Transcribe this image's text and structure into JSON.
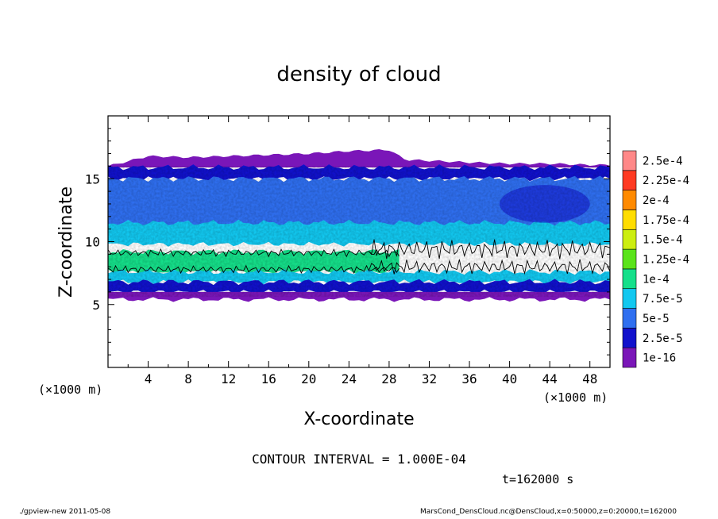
{
  "chart_data": {
    "type": "heatmap",
    "title": "density of cloud",
    "xlabel": "X-coordinate",
    "ylabel": "Z-coordinate",
    "x_unit_left": "(×1000 m)",
    "x_unit_right": "(×1000 m)",
    "xlim": [
      0,
      50
    ],
    "ylim": [
      0,
      20
    ],
    "x_ticks": [
      4,
      8,
      12,
      16,
      20,
      24,
      28,
      32,
      36,
      40,
      44,
      48
    ],
    "y_ticks": [
      5,
      10,
      15
    ],
    "contour_interval_label": "CONTOUR INTERVAL = 1.000E-04",
    "time_label": "t=162000 s",
    "colorbar": {
      "levels": [
        1e-16,
        2.5e-05,
        5e-05,
        7.5e-05,
        0.0001,
        0.000125,
        0.00015,
        0.000175,
        0.0002,
        0.000225,
        0.00025
      ],
      "labels": [
        "1e-16",
        "2.5e-5",
        "5e-5",
        "7.5e-5",
        "1e-4",
        "1.25e-4",
        "1.5e-4",
        "1.75e-4",
        "2e-4",
        "2.25e-4",
        "2.5e-4"
      ],
      "colors": [
        "#7a16b8",
        "#1111cc",
        "#2f6ff0",
        "#12c8f0",
        "#15e08a",
        "#5ae41a",
        "#ccee10",
        "#ffdd00",
        "#ff8a00",
        "#ff3a22",
        "#ff8888"
      ]
    },
    "layers": [
      {
        "name": "cloud-top-fringe",
        "z_bottom": 15.9,
        "z_top_profile_x": [
          0,
          4,
          8,
          16,
          20,
          24,
          28,
          29.4,
          30,
          36,
          40,
          44,
          48,
          50
        ],
        "z_top_profile": [
          16.0,
          16.8,
          16.7,
          16.9,
          17.0,
          17.2,
          17.3,
          16.6,
          16.5,
          16.3,
          16.2,
          16.2,
          16.1,
          16.1
        ],
        "level_index": 0
      },
      {
        "name": "upper-dense-band",
        "z_bottom": 15.0,
        "z_top": 15.9,
        "level_index": 1
      },
      {
        "name": "upper-cloud",
        "z_bottom": 10.5,
        "z_top": 15.0,
        "level_index": 2
      },
      {
        "name": "upper-cloud-bright",
        "z_bottom": 9.8,
        "z_top": 11.5,
        "level_index": 3
      },
      {
        "name": "peak-density-core",
        "z_bottom": 7.6,
        "z_top": 9.2,
        "x_extent": [
          0,
          29
        ],
        "level_index": 4
      },
      {
        "name": "lower-cloud",
        "z_bottom": 6.8,
        "z_top": 7.6,
        "level_index": 3
      },
      {
        "name": "lower-dense-band",
        "z_bottom": 6.0,
        "z_top": 6.8,
        "level_index": 1
      },
      {
        "name": "cloud-bottom-fringe",
        "z_bottom": 5.4,
        "z_top": 6.0,
        "level_index": 0
      }
    ],
    "contour_1e-4": {
      "level": 0.0001,
      "z_range": [
        7.3,
        10.6
      ],
      "x_extent": [
        0,
        50
      ]
    }
  },
  "footer": {
    "left": "./gpview-new   2011-05-08",
    "right": "MarsCond_DensCloud.nc@DensCloud,x=0:50000,z=0:20000,t=162000"
  }
}
